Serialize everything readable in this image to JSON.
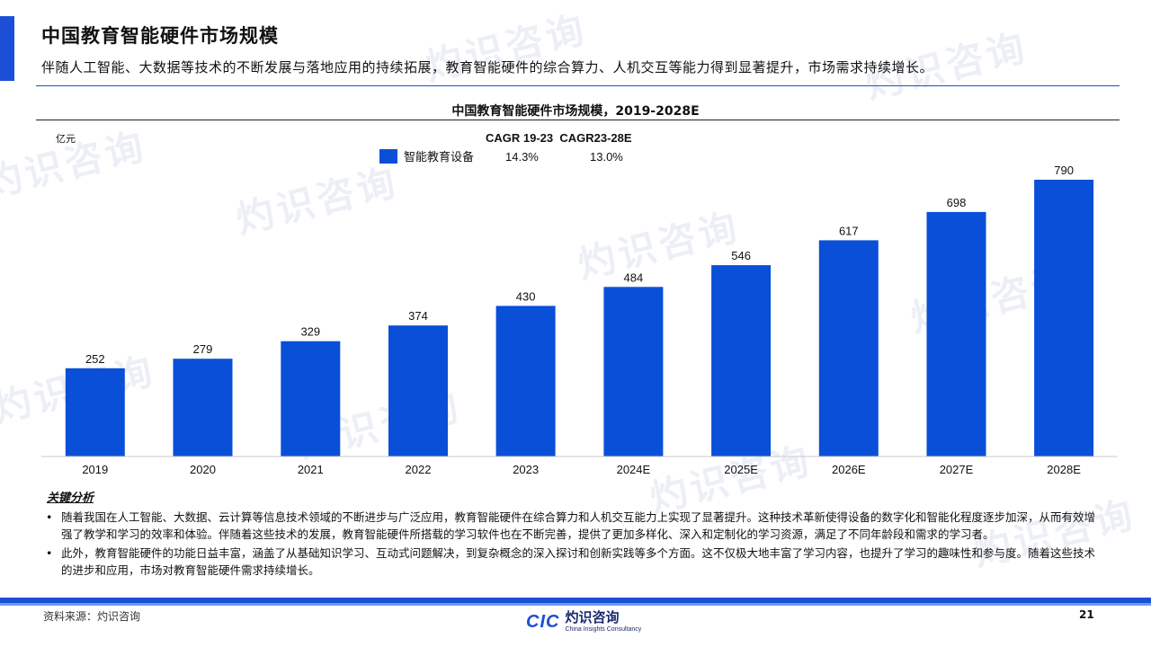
{
  "header": {
    "title": "中国教育智能硬件市场规模",
    "subtitle": "伴随人工智能、大数据等技术的不断发展与落地应用的持续拓展，教育智能硬件的综合算力、人机交互等能力得到显著提升，市场需求持续增长。",
    "accent_color": "#1a4fd6"
  },
  "watermark": {
    "cn": "灼识咨询",
    "en": "China Insights Consultancy",
    "mark": "CIC"
  },
  "chart_data": {
    "type": "bar",
    "title": "中国教育智能硬件市场规模，2019-2028E",
    "ylabel": "亿元",
    "categories": [
      "2019",
      "2020",
      "2021",
      "2022",
      "2023",
      "2024E",
      "2025E",
      "2026E",
      "2027E",
      "2028E"
    ],
    "series": [
      {
        "name": "智能教育设备",
        "values": [
          252,
          279,
          329,
          374,
          430,
          484,
          546,
          617,
          698,
          790
        ],
        "color": "#0a4fd8"
      }
    ],
    "cagr_header": "CAGR 19-23  CAGR23-28E",
    "cagr_values": [
      "14.3%",
      "13.0%"
    ],
    "ylim": [
      0,
      790
    ],
    "grid": false,
    "legend_position": "top-left"
  },
  "analysis": {
    "title": "关键分析",
    "points": [
      "随着我国在人工智能、大数据、云计算等信息技术领域的不断进步与广泛应用，教育智能硬件在综合算力和人机交互能力上实现了显著提升。这种技术革新使得设备的数字化和智能化程度逐步加深，从而有效增强了教学和学习的效率和体验。伴随着这些技术的发展，教育智能硬件所搭载的学习软件也在不断完善，提供了更加多样化、深入和定制化的学习资源，满足了不同年龄段和需求的学习者。",
      "此外，教育智能硬件的功能日益丰富，涵盖了从基础知识学习、互动式问题解决，到复杂概念的深入探讨和创新实践等多个方面。这不仅极大地丰富了学习内容，也提升了学习的趣味性和参与度。随着这些技术的进步和应用，市场对教育智能硬件需求持续增长。"
    ]
  },
  "footer": {
    "source": "资料来源：灼识咨询",
    "logo_mark": "CIC",
    "logo_cn": "灼识咨询",
    "logo_en": "China Insights Consultancy",
    "page_number": "21"
  }
}
